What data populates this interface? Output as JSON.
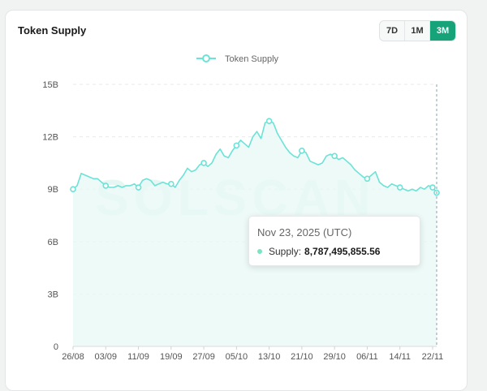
{
  "card": {
    "title": "Token Supply"
  },
  "range_buttons": [
    {
      "label": "7D",
      "active": false
    },
    {
      "label": "1M",
      "active": false
    },
    {
      "label": "3M",
      "active": true
    }
  ],
  "watermark": "SOLSCAN",
  "colors": {
    "line": "#6be3d6",
    "accent": "#16a37a",
    "fill": "#e8f8f5"
  },
  "tooltip": {
    "date": "Nov 23, 2025 (UTC)",
    "label": "Supply:",
    "value": "8,787,495,855.56"
  },
  "chart_data": {
    "type": "area",
    "title": "Token Supply",
    "xlabel": "",
    "ylabel": "",
    "ylim": [
      0,
      15
    ],
    "y_unit": "billion",
    "y_ticks": [
      "0",
      "3B",
      "6B",
      "9B",
      "12B",
      "15B"
    ],
    "x_ticks": [
      "26/08",
      "03/09",
      "11/09",
      "19/09",
      "27/09",
      "05/10",
      "13/10",
      "21/10",
      "29/10",
      "06/11",
      "14/11",
      "22/11"
    ],
    "legend": {
      "position": "top-center",
      "entries": [
        "Token Supply"
      ]
    },
    "grid": true,
    "series": [
      {
        "name": "Token Supply",
        "x": [
          "26/08",
          "27/08",
          "28/08",
          "29/08",
          "30/08",
          "31/08",
          "01/09",
          "02/09",
          "03/09",
          "04/09",
          "05/09",
          "06/09",
          "07/09",
          "08/09",
          "09/09",
          "10/09",
          "11/09",
          "12/09",
          "13/09",
          "14/09",
          "15/09",
          "16/09",
          "17/09",
          "18/09",
          "19/09",
          "20/09",
          "21/09",
          "22/09",
          "23/09",
          "24/09",
          "25/09",
          "26/09",
          "27/09",
          "28/09",
          "29/09",
          "30/09",
          "01/10",
          "02/10",
          "03/10",
          "04/10",
          "05/10",
          "06/10",
          "07/10",
          "08/10",
          "09/10",
          "10/10",
          "11/10",
          "12/10",
          "13/10",
          "14/10",
          "15/10",
          "16/10",
          "17/10",
          "18/10",
          "19/10",
          "20/10",
          "21/10",
          "22/10",
          "23/10",
          "24/10",
          "25/10",
          "26/10",
          "27/10",
          "28/10",
          "29/10",
          "30/10",
          "31/10",
          "01/11",
          "02/11",
          "03/11",
          "04/11",
          "05/11",
          "06/11",
          "07/11",
          "08/11",
          "09/11",
          "10/11",
          "11/11",
          "12/11",
          "13/11",
          "14/11",
          "15/11",
          "16/11",
          "17/11",
          "18/11",
          "19/11",
          "20/11",
          "21/11",
          "22/11",
          "23/11"
        ],
        "values": [
          9.0,
          9.2,
          9.9,
          9.8,
          9.7,
          9.6,
          9.6,
          9.4,
          9.2,
          9.1,
          9.1,
          9.2,
          9.1,
          9.2,
          9.2,
          9.3,
          9.1,
          9.5,
          9.6,
          9.5,
          9.2,
          9.3,
          9.4,
          9.3,
          9.3,
          9.1,
          9.5,
          9.8,
          10.2,
          10.0,
          10.1,
          10.4,
          10.5,
          10.3,
          10.5,
          11.0,
          11.3,
          10.9,
          10.8,
          11.2,
          11.5,
          11.8,
          11.6,
          11.4,
          12.0,
          12.3,
          11.9,
          12.8,
          12.9,
          12.8,
          12.2,
          11.8,
          11.4,
          11.1,
          10.9,
          10.8,
          11.2,
          11.1,
          10.6,
          10.5,
          10.4,
          10.5,
          10.9,
          11.0,
          10.9,
          10.7,
          10.8,
          10.6,
          10.4,
          10.1,
          9.9,
          9.7,
          9.6,
          9.8,
          10.0,
          9.4,
          9.2,
          9.1,
          9.3,
          9.2,
          9.1,
          9.0,
          8.9,
          9.0,
          8.9,
          9.1,
          9.0,
          9.2,
          9.1,
          8.8
        ]
      }
    ],
    "markers": [
      "26/08",
      "03/09",
      "11/09",
      "19/09",
      "27/09",
      "05/10",
      "13/10",
      "21/10",
      "29/10",
      "06/11",
      "14/11",
      "22/11",
      "23/11"
    ]
  }
}
